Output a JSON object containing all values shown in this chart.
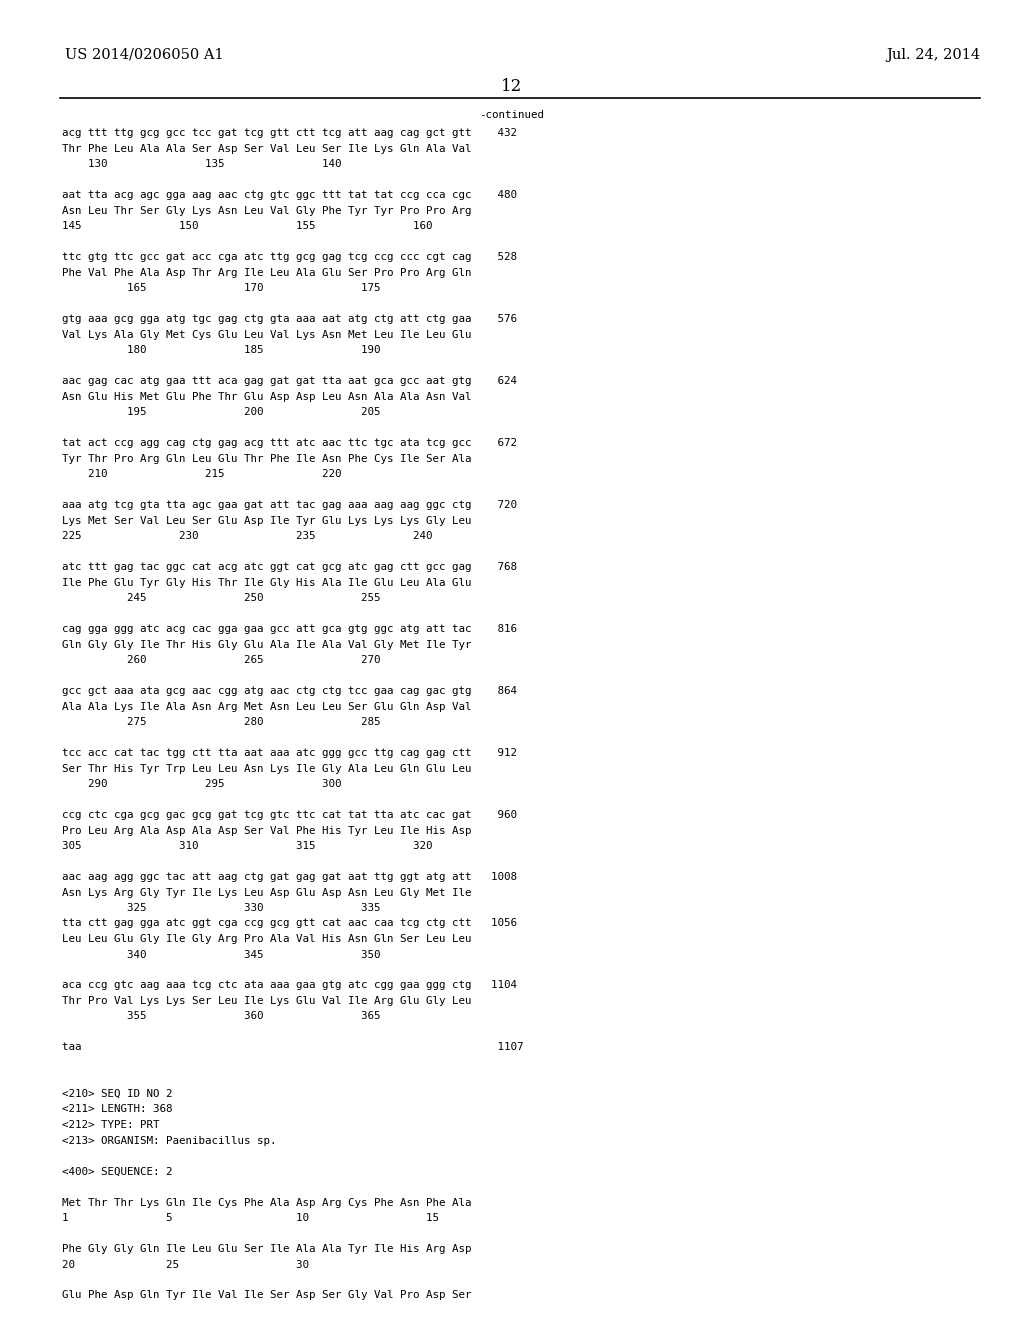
{
  "header_left": "US 2014/0206050 A1",
  "header_right": "Jul. 24, 2014",
  "page_number": "12",
  "continued": "-continued",
  "background_color": "#ffffff",
  "text_color": "#000000",
  "font_size_header": 10.5,
  "font_size_page_num": 12,
  "font_size_body": 7.8,
  "lines": [
    "acg ttt ttg gcg gcc tcc gat tcg gtt ctt tcg att aag cag gct gtt    432",
    "Thr Phe Leu Ala Ala Ser Asp Ser Val Leu Ser Ile Lys Gln Ala Val",
    "    130               135               140",
    "",
    "aat tta acg agc gga aag aac ctg gtc ggc ttt tat tat ccg cca cgc    480",
    "Asn Leu Thr Ser Gly Lys Asn Leu Val Gly Phe Tyr Tyr Pro Pro Arg",
    "145               150               155               160",
    "",
    "ttc gtg ttc gcc gat acc cga atc ttg gcg gag tcg ccg ccc cgt cag    528",
    "Phe Val Phe Ala Asp Thr Arg Ile Leu Ala Glu Ser Pro Pro Arg Gln",
    "          165               170               175",
    "",
    "gtg aaa gcg gga atg tgc gag ctg gta aaa aat atg ctg att ctg gaa    576",
    "Val Lys Ala Gly Met Cys Glu Leu Val Lys Asn Met Leu Ile Leu Glu",
    "          180               185               190",
    "",
    "aac gag cac atg gaa ttt aca gag gat gat tta aat gca gcc aat gtg    624",
    "Asn Glu His Met Glu Phe Thr Glu Asp Asp Leu Asn Ala Ala Asn Val",
    "          195               200               205",
    "",
    "tat act ccg agg cag ctg gag acg ttt atc aac ttc tgc ata tcg gcc    672",
    "Tyr Thr Pro Arg Gln Leu Glu Thr Phe Ile Asn Phe Cys Ile Ser Ala",
    "    210               215               220",
    "",
    "aaa atg tcg gta tta agc gaa gat att tac gag aaa aag aag ggc ctg    720",
    "Lys Met Ser Val Leu Ser Glu Asp Ile Tyr Glu Lys Lys Lys Gly Leu",
    "225               230               235               240",
    "",
    "atc ttt gag tac ggc cat acg atc ggt cat gcg atc gag ctt gcc gag    768",
    "Ile Phe Glu Tyr Gly His Thr Ile Gly His Ala Ile Glu Leu Ala Glu",
    "          245               250               255",
    "",
    "cag gga ggg atc acg cac gga gaa gcc att gca gtg ggc atg att tac    816",
    "Gln Gly Gly Ile Thr His Gly Glu Ala Ile Ala Val Gly Met Ile Tyr",
    "          260               265               270",
    "",
    "gcc gct aaa ata gcg aac cgg atg aac ctg ctg tcc gaa cag gac gtg    864",
    "Ala Ala Lys Ile Ala Asn Arg Met Asn Leu Leu Ser Glu Gln Asp Val",
    "          275               280               285",
    "",
    "tcc acc cat tac tgg ctt tta aat aaa atc ggg gcc ttg cag gag ctt    912",
    "Ser Thr His Tyr Trp Leu Leu Asn Lys Ile Gly Ala Leu Gln Glu Leu",
    "    290               295               300",
    "",
    "ccg ctc cga gcg gac gcg gat tcg gtc ttc cat tat tta atc cac gat    960",
    "Pro Leu Arg Ala Asp Ala Asp Ser Val Phe His Tyr Leu Ile His Asp",
    "305               310               315               320",
    "",
    "aac aag agg ggc tac att aag ctg gat gag gat aat ttg ggt atg att   1008",
    "Asn Lys Arg Gly Tyr Ile Lys Leu Asp Glu Asp Asn Leu Gly Met Ile",
    "          325               330               335",
    "tta ctt gag gga atc ggt cga ccg gcg gtt cat aac caa tcg ctg ctt   1056",
    "Leu Leu Glu Gly Ile Gly Arg Pro Ala Val His Asn Gln Ser Leu Leu",
    "          340               345               350",
    "",
    "aca ccg gtc aag aaa tcg ctc ata aaa gaa gtg atc cgg gaa ggg ctg   1104",
    "Thr Pro Val Lys Lys Ser Leu Ile Lys Glu Val Ile Arg Glu Gly Leu",
    "          355               360               365",
    "",
    "taa                                                                1107",
    "",
    "",
    "<210> SEQ ID NO 2",
    "<211> LENGTH: 368",
    "<212> TYPE: PRT",
    "<213> ORGANISM: Paenibacillus sp.",
    "",
    "<400> SEQUENCE: 2",
    "",
    "Met Thr Thr Lys Gln Ile Cys Phe Ala Asp Arg Cys Phe Asn Phe Ala",
    "1               5                   10                  15",
    "",
    "Phe Gly Gly Gln Ile Leu Glu Ser Ile Ala Ala Tyr Ile His Arg Asp",
    "20              25                  30",
    "",
    "Glu Phe Asp Gln Tyr Ile Val Ile Ser Asp Ser Gly Val Pro Asp Ser"
  ]
}
